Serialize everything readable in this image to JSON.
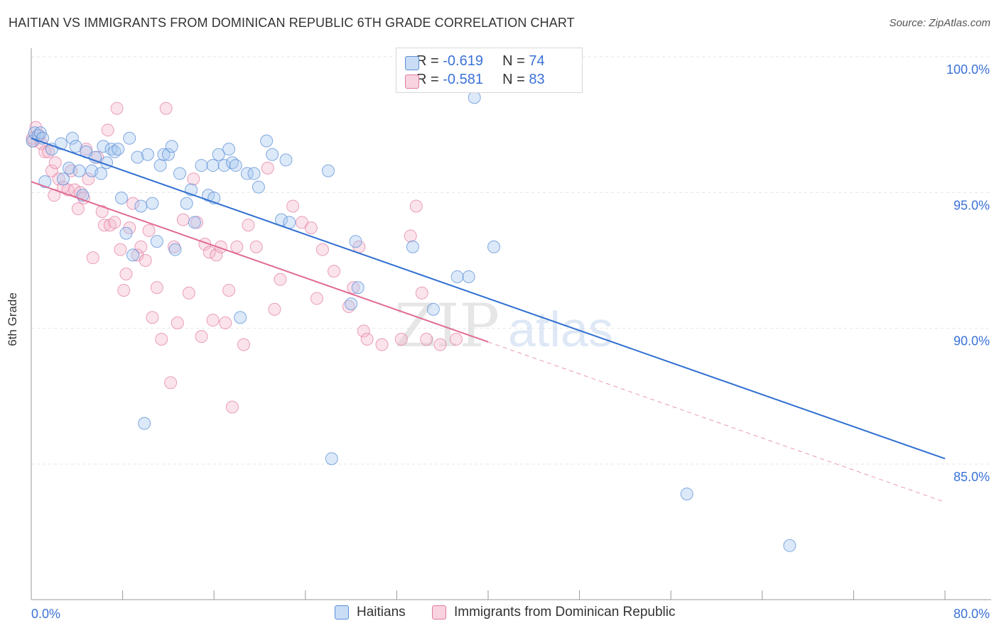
{
  "header": {
    "title": "HAITIAN VS IMMIGRANTS FROM DOMINICAN REPUBLIC 6TH GRADE CORRELATION CHART",
    "source": "Source: ZipAtlas.com"
  },
  "watermark": {
    "zip": "ZIP",
    "atlas": "atlas"
  },
  "legend_top": [
    {
      "r_label": "R = ",
      "r_value": "-0.619",
      "n_label": "N = ",
      "n_value": "74",
      "color": "#a8c8f0"
    },
    {
      "r_label": "R = ",
      "r_value": "-0.581",
      "n_label": "N = ",
      "n_value": "83",
      "color": "#f5b8cc"
    }
  ],
  "legend_bottom": [
    {
      "label": "Haitians",
      "color": "#a8c8f0"
    },
    {
      "label": "Immigrants from Dominican Republic",
      "color": "#f5b8cc"
    }
  ],
  "colors": {
    "blue_fill": "#a8c8f0",
    "blue_stroke": "#5b8fd6",
    "blue_line": "#2f6fd1",
    "pink_fill": "#f5b8cc",
    "pink_stroke": "#e07aa0",
    "pink_line": "#e06b93",
    "tick_label": "#3a72d8",
    "grid": "#e6e6e6"
  },
  "chart_data": {
    "type": "scatter",
    "title": "HAITIAN VS IMMIGRANTS FROM DOMINICAN REPUBLIC 6TH GRADE CORRELATION CHART",
    "xlabel": "",
    "ylabel": "6th Grade",
    "xlim": [
      0,
      80
    ],
    "ylim": [
      80.5,
      101.0
    ],
    "x_tick_labels": [
      "0.0%",
      "80.0%"
    ],
    "y_ticks": [
      85,
      90,
      95,
      100
    ],
    "y_tick_labels": [
      "85.0%",
      "90.0%",
      "95.0%",
      "100.0%"
    ],
    "grid": true,
    "legend_position": "top-center",
    "series": [
      {
        "name": "Haitians",
        "R": -0.619,
        "N": 74,
        "trend": {
          "x": [
            0,
            80
          ],
          "y": [
            97.0,
            85.2
          ],
          "style": "solid"
        },
        "points": [
          [
            0.1,
            96.9
          ],
          [
            0.3,
            97.2
          ],
          [
            0.6,
            97.1
          ],
          [
            0.8,
            97.2
          ],
          [
            1.0,
            97.0
          ],
          [
            1.2,
            95.4
          ],
          [
            1.8,
            96.6
          ],
          [
            2.6,
            96.8
          ],
          [
            2.8,
            95.5
          ],
          [
            3.3,
            95.9
          ],
          [
            3.6,
            97.0
          ],
          [
            3.9,
            96.7
          ],
          [
            4.2,
            95.8
          ],
          [
            4.5,
            94.9
          ],
          [
            4.8,
            96.5
          ],
          [
            5.3,
            95.8
          ],
          [
            5.6,
            96.3
          ],
          [
            6.1,
            95.7
          ],
          [
            6.3,
            96.7
          ],
          [
            6.6,
            96.1
          ],
          [
            7.0,
            96.6
          ],
          [
            7.3,
            96.5
          ],
          [
            7.6,
            96.6
          ],
          [
            7.9,
            94.8
          ],
          [
            8.3,
            93.5
          ],
          [
            8.6,
            97.0
          ],
          [
            8.9,
            92.7
          ],
          [
            9.3,
            96.3
          ],
          [
            9.6,
            94.5
          ],
          [
            9.9,
            86.5
          ],
          [
            10.2,
            96.4
          ],
          [
            10.6,
            94.6
          ],
          [
            11.0,
            93.2
          ],
          [
            11.3,
            96.0
          ],
          [
            11.6,
            96.4
          ],
          [
            12.0,
            96.4
          ],
          [
            12.3,
            96.7
          ],
          [
            12.6,
            92.9
          ],
          [
            13.0,
            95.7
          ],
          [
            13.6,
            94.6
          ],
          [
            14.0,
            95.1
          ],
          [
            14.3,
            93.9
          ],
          [
            14.9,
            96.0
          ],
          [
            15.5,
            94.9
          ],
          [
            15.9,
            96.0
          ],
          [
            16.0,
            94.8
          ],
          [
            16.4,
            96.4
          ],
          [
            16.9,
            96.0
          ],
          [
            17.3,
            96.6
          ],
          [
            17.6,
            96.1
          ],
          [
            17.9,
            96.0
          ],
          [
            18.3,
            90.4
          ],
          [
            18.9,
            95.7
          ],
          [
            19.5,
            95.7
          ],
          [
            19.9,
            95.2
          ],
          [
            20.6,
            96.9
          ],
          [
            21.1,
            96.4
          ],
          [
            21.9,
            94.0
          ],
          [
            22.3,
            96.2
          ],
          [
            22.6,
            93.9
          ],
          [
            26.0,
            95.8
          ],
          [
            26.3,
            85.2
          ],
          [
            28.4,
            93.2
          ],
          [
            28.6,
            91.5
          ],
          [
            28.0,
            90.9
          ],
          [
            32.5,
            100.0
          ],
          [
            33.4,
            93.0
          ],
          [
            35.2,
            90.7
          ],
          [
            37.3,
            91.9
          ],
          [
            38.3,
            91.9
          ],
          [
            38.8,
            98.5
          ],
          [
            40.5,
            93.0
          ],
          [
            57.4,
            83.9
          ],
          [
            66.4,
            82.0
          ]
        ]
      },
      {
        "name": "Immigrants from Dominican Republic",
        "R": -0.581,
        "N": 83,
        "trend": {
          "x": [
            0,
            40
          ],
          "y": [
            95.4,
            89.5
          ],
          "extended_to": [
            80,
            83.6
          ],
          "style": "solid-then-dashed"
        },
        "points": [
          [
            0.2,
            96.9
          ],
          [
            0.4,
            97.4
          ],
          [
            0.7,
            97.1
          ],
          [
            0.9,
            96.8
          ],
          [
            1.2,
            96.5
          ],
          [
            1.5,
            96.5
          ],
          [
            1.8,
            95.8
          ],
          [
            2.0,
            94.9
          ],
          [
            2.1,
            96.1
          ],
          [
            2.4,
            95.5
          ],
          [
            2.8,
            95.2
          ],
          [
            3.2,
            95.1
          ],
          [
            3.5,
            95.8
          ],
          [
            3.8,
            95.1
          ],
          [
            4.1,
            94.4
          ],
          [
            4.3,
            95.0
          ],
          [
            4.6,
            94.8
          ],
          [
            4.8,
            96.6
          ],
          [
            5.0,
            95.5
          ],
          [
            5.4,
            92.6
          ],
          [
            5.8,
            96.3
          ],
          [
            6.2,
            94.3
          ],
          [
            6.4,
            93.8
          ],
          [
            6.7,
            97.3
          ],
          [
            6.9,
            93.8
          ],
          [
            7.3,
            93.9
          ],
          [
            7.5,
            98.1
          ],
          [
            7.8,
            92.9
          ],
          [
            8.1,
            91.4
          ],
          [
            8.3,
            92.0
          ],
          [
            8.6,
            93.7
          ],
          [
            8.9,
            94.6
          ],
          [
            9.3,
            92.7
          ],
          [
            9.6,
            93.0
          ],
          [
            10.0,
            92.5
          ],
          [
            10.3,
            93.6
          ],
          [
            10.6,
            90.4
          ],
          [
            11.0,
            91.5
          ],
          [
            11.4,
            89.6
          ],
          [
            11.8,
            98.1
          ],
          [
            12.2,
            88.0
          ],
          [
            12.5,
            93.0
          ],
          [
            12.8,
            90.2
          ],
          [
            13.3,
            94.0
          ],
          [
            13.8,
            91.3
          ],
          [
            14.2,
            95.5
          ],
          [
            14.5,
            93.9
          ],
          [
            14.9,
            89.7
          ],
          [
            15.2,
            93.1
          ],
          [
            15.6,
            92.8
          ],
          [
            15.9,
            90.3
          ],
          [
            16.2,
            92.7
          ],
          [
            16.6,
            93.0
          ],
          [
            17.0,
            90.2
          ],
          [
            17.3,
            91.4
          ],
          [
            17.6,
            87.1
          ],
          [
            18.0,
            93.0
          ],
          [
            18.6,
            89.4
          ],
          [
            19.0,
            93.8
          ],
          [
            19.7,
            93.0
          ],
          [
            20.7,
            95.9
          ],
          [
            21.3,
            90.7
          ],
          [
            21.8,
            91.8
          ],
          [
            22.9,
            94.5
          ],
          [
            23.7,
            93.9
          ],
          [
            24.5,
            93.7
          ],
          [
            25.0,
            91.1
          ],
          [
            25.5,
            92.9
          ],
          [
            26.5,
            92.1
          ],
          [
            27.8,
            90.8
          ],
          [
            28.2,
            91.5
          ],
          [
            28.7,
            93.0
          ],
          [
            29.1,
            89.9
          ],
          [
            29.4,
            89.6
          ],
          [
            30.7,
            89.4
          ],
          [
            32.4,
            89.6
          ],
          [
            33.2,
            93.4
          ],
          [
            33.7,
            94.5
          ],
          [
            34.2,
            91.3
          ],
          [
            34.6,
            89.6
          ],
          [
            35.8,
            89.4
          ],
          [
            37.2,
            89.6
          ],
          [
            0.1,
            97.0
          ]
        ]
      }
    ]
  }
}
